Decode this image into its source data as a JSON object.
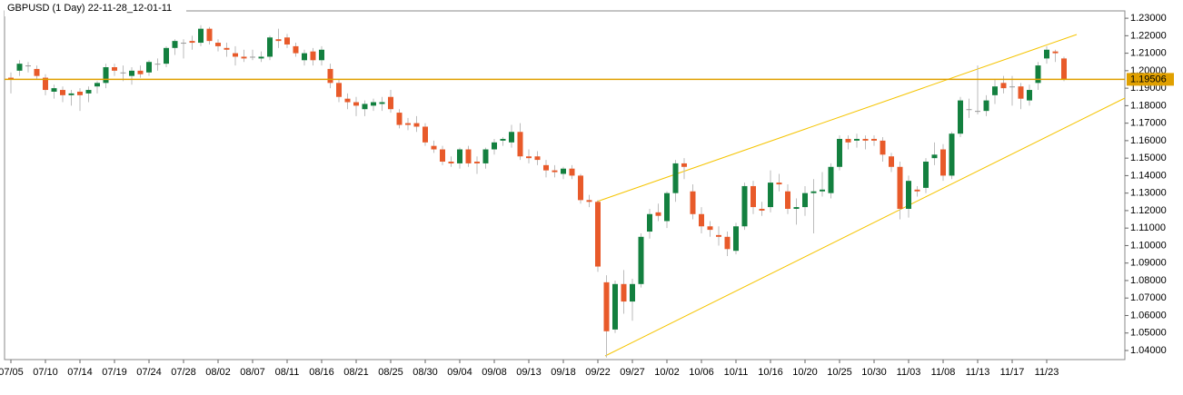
{
  "chart_data": {
    "type": "candlestick",
    "title": "GBPUSD (1 Day) 22-11-28_12-01-11",
    "categories": [
      "07/05",
      null,
      null,
      null,
      "07/10",
      null,
      null,
      null,
      "07/14",
      null,
      null,
      null,
      "07/19",
      null,
      null,
      null,
      "07/24",
      null,
      null,
      null,
      "07/28",
      null,
      null,
      null,
      "08/02",
      null,
      null,
      null,
      "08/07",
      null,
      null,
      null,
      "08/11",
      null,
      null,
      null,
      "08/16",
      null,
      null,
      null,
      "08/21",
      null,
      null,
      null,
      "08/25",
      null,
      null,
      null,
      "08/30",
      null,
      null,
      null,
      "09/04",
      null,
      null,
      null,
      "09/08",
      null,
      null,
      null,
      "09/13",
      null,
      null,
      null,
      "09/18",
      null,
      null,
      null,
      "09/22",
      null,
      null,
      null,
      "09/27",
      null,
      null,
      null,
      "10/02",
      null,
      null,
      null,
      "10/06",
      null,
      null,
      null,
      "10/11",
      null,
      null,
      null,
      "10/16",
      null,
      null,
      null,
      "10/20",
      null,
      null,
      null,
      "10/25",
      null,
      null,
      null,
      "10/30",
      null,
      null,
      null,
      "11/03",
      null,
      null,
      null,
      "11/08",
      null,
      null,
      null,
      "11/13",
      null,
      null,
      null,
      "11/17",
      null,
      null,
      null,
      "11/23",
      null,
      null
    ],
    "candles": [
      [
        1.196,
        1.199,
        1.187,
        1.195
      ],
      [
        1.2,
        1.206,
        1.197,
        1.204
      ],
      [
        1.203,
        1.205,
        1.199,
        1.203
      ],
      [
        1.201,
        1.203,
        1.195,
        1.197
      ],
      [
        1.196,
        1.198,
        1.186,
        1.189
      ],
      [
        1.188,
        1.192,
        1.184,
        1.19
      ],
      [
        1.189,
        1.191,
        1.182,
        1.186
      ],
      [
        1.186,
        1.189,
        1.18,
        1.187
      ],
      [
        1.188,
        1.19,
        1.177,
        1.186
      ],
      [
        1.187,
        1.191,
        1.182,
        1.189
      ],
      [
        1.191,
        1.194,
        1.187,
        1.193
      ],
      [
        1.193,
        1.204,
        1.19,
        1.202
      ],
      [
        1.202,
        1.204,
        1.197,
        1.2
      ],
      [
        1.199,
        1.203,
        1.194,
        1.199
      ],
      [
        1.197,
        1.202,
        1.192,
        1.2
      ],
      [
        1.2,
        1.203,
        1.196,
        1.198
      ],
      [
        1.199,
        1.206,
        1.197,
        1.205
      ],
      [
        1.204,
        1.207,
        1.2,
        1.204
      ],
      [
        1.204,
        1.214,
        1.202,
        1.213
      ],
      [
        1.213,
        1.218,
        1.209,
        1.217
      ],
      [
        1.216,
        1.218,
        1.207,
        1.216
      ],
      [
        1.217,
        1.22,
        1.212,
        1.216
      ],
      [
        1.216,
        1.226,
        1.214,
        1.224
      ],
      [
        1.224,
        1.225,
        1.215,
        1.217
      ],
      [
        1.216,
        1.218,
        1.211,
        1.214
      ],
      [
        1.213,
        1.216,
        1.208,
        1.212
      ],
      [
        1.21,
        1.214,
        1.203,
        1.208
      ],
      [
        1.208,
        1.212,
        1.205,
        1.207
      ],
      [
        1.208,
        1.212,
        1.206,
        1.208
      ],
      [
        1.207,
        1.211,
        1.205,
        1.208
      ],
      [
        1.208,
        1.22,
        1.206,
        1.219
      ],
      [
        1.218,
        1.224,
        1.213,
        1.217
      ],
      [
        1.219,
        1.221,
        1.213,
        1.215
      ],
      [
        1.214,
        1.216,
        1.208,
        1.21
      ],
      [
        1.206,
        1.212,
        1.203,
        1.21
      ],
      [
        1.211,
        1.213,
        1.203,
        1.206
      ],
      [
        1.206,
        1.214,
        1.203,
        1.212
      ],
      [
        1.201,
        1.204,
        1.19,
        1.193
      ],
      [
        1.193,
        1.195,
        1.182,
        1.185
      ],
      [
        1.184,
        1.187,
        1.178,
        1.182
      ],
      [
        1.182,
        1.185,
        1.174,
        1.18
      ],
      [
        1.178,
        1.183,
        1.174,
        1.181
      ],
      [
        1.18,
        1.184,
        1.177,
        1.182
      ],
      [
        1.181,
        1.185,
        1.177,
        1.182
      ],
      [
        1.185,
        1.189,
        1.176,
        1.178
      ],
      [
        1.176,
        1.178,
        1.167,
        1.169
      ],
      [
        1.17,
        1.173,
        1.166,
        1.169
      ],
      [
        1.17,
        1.174,
        1.165,
        1.168
      ],
      [
        1.168,
        1.17,
        1.157,
        1.159
      ],
      [
        1.157,
        1.16,
        1.153,
        1.155
      ],
      [
        1.155,
        1.157,
        1.146,
        1.148
      ],
      [
        1.148,
        1.151,
        1.145,
        1.147
      ],
      [
        1.147,
        1.156,
        1.144,
        1.155
      ],
      [
        1.155,
        1.157,
        1.145,
        1.147
      ],
      [
        1.148,
        1.151,
        1.141,
        1.147
      ],
      [
        1.147,
        1.156,
        1.144,
        1.155
      ],
      [
        1.155,
        1.161,
        1.152,
        1.159
      ],
      [
        1.16,
        1.162,
        1.157,
        1.161
      ],
      [
        1.159,
        1.169,
        1.156,
        1.165
      ],
      [
        1.165,
        1.17,
        1.149,
        1.151
      ],
      [
        1.151,
        1.155,
        1.147,
        1.15
      ],
      [
        1.151,
        1.154,
        1.146,
        1.149
      ],
      [
        1.146,
        1.149,
        1.139,
        1.143
      ],
      [
        1.143,
        1.146,
        1.139,
        1.142
      ],
      [
        1.141,
        1.145,
        1.138,
        1.144
      ],
      [
        1.144,
        1.146,
        1.138,
        1.14
      ],
      [
        1.14,
        1.141,
        1.124,
        1.126
      ],
      [
        1.126,
        1.129,
        1.122,
        1.125
      ],
      [
        1.125,
        1.126,
        1.085,
        1.088
      ],
      [
        1.079,
        1.083,
        1.036,
        1.051
      ],
      [
        1.052,
        1.08,
        1.05,
        1.078
      ],
      [
        1.078,
        1.086,
        1.061,
        1.068
      ],
      [
        1.068,
        1.081,
        1.057,
        1.078
      ],
      [
        1.078,
        1.107,
        1.076,
        1.105
      ],
      [
        1.108,
        1.121,
        1.104,
        1.118
      ],
      [
        1.119,
        1.124,
        1.114,
        1.117
      ],
      [
        1.114,
        1.131,
        1.11,
        1.13
      ],
      [
        1.13,
        1.149,
        1.125,
        1.147
      ],
      [
        1.147,
        1.15,
        1.138,
        1.145
      ],
      [
        1.131,
        1.135,
        1.115,
        1.118
      ],
      [
        1.118,
        1.122,
        1.107,
        1.111
      ],
      [
        1.111,
        1.114,
        1.105,
        1.109
      ],
      [
        1.106,
        1.111,
        1.1,
        1.105
      ],
      [
        1.105,
        1.108,
        1.094,
        1.098
      ],
      [
        1.097,
        1.113,
        1.095,
        1.111
      ],
      [
        1.111,
        1.136,
        1.109,
        1.134
      ],
      [
        1.134,
        1.137,
        1.118,
        1.122
      ],
      [
        1.121,
        1.125,
        1.117,
        1.12
      ],
      [
        1.122,
        1.143,
        1.119,
        1.136
      ],
      [
        1.136,
        1.141,
        1.131,
        1.135
      ],
      [
        1.131,
        1.135,
        1.118,
        1.121
      ],
      [
        1.121,
        1.127,
        1.112,
        1.122
      ],
      [
        1.122,
        1.134,
        1.117,
        1.13
      ],
      [
        1.13,
        1.138,
        1.107,
        1.131
      ],
      [
        1.131,
        1.142,
        1.128,
        1.132
      ],
      [
        1.13,
        1.147,
        1.127,
        1.145
      ],
      [
        1.145,
        1.163,
        1.143,
        1.161
      ],
      [
        1.161,
        1.163,
        1.155,
        1.159
      ],
      [
        1.16,
        1.164,
        1.156,
        1.161
      ],
      [
        1.161,
        1.163,
        1.155,
        1.16
      ],
      [
        1.161,
        1.163,
        1.157,
        1.16
      ],
      [
        1.16,
        1.162,
        1.148,
        1.152
      ],
      [
        1.151,
        1.153,
        1.142,
        1.145
      ],
      [
        1.145,
        1.148,
        1.115,
        1.121
      ],
      [
        1.121,
        1.14,
        1.116,
        1.137
      ],
      [
        1.132,
        1.134,
        1.128,
        1.131
      ],
      [
        1.133,
        1.15,
        1.13,
        1.148
      ],
      [
        1.15,
        1.159,
        1.146,
        1.152
      ],
      [
        1.155,
        1.158,
        1.137,
        1.14
      ],
      [
        1.14,
        1.165,
        1.138,
        1.164
      ],
      [
        1.164,
        1.185,
        1.162,
        1.183
      ],
      [
        1.178,
        1.184,
        1.173,
        1.178
      ],
      [
        1.177,
        1.203,
        1.175,
        1.177
      ],
      [
        1.177,
        1.186,
        1.174,
        1.183
      ],
      [
        1.186,
        1.195,
        1.181,
        1.191
      ],
      [
        1.193,
        1.197,
        1.187,
        1.19
      ],
      [
        1.191,
        1.197,
        1.18,
        1.191
      ],
      [
        1.191,
        1.193,
        1.178,
        1.184
      ],
      [
        1.183,
        1.192,
        1.18,
        1.189
      ],
      [
        1.193,
        1.205,
        1.189,
        1.203
      ],
      [
        1.207,
        1.214,
        1.204,
        1.212
      ],
      [
        1.211,
        1.212,
        1.205,
        1.21
      ],
      [
        1.207,
        1.208,
        1.194,
        1.195
      ]
    ],
    "up_color": "#13803f",
    "down_color": "#e85a2a",
    "ylim": [
      1.0348,
      1.2342
    ],
    "yticks": [
      {
        "value": 1.23,
        "label": "1.23000"
      },
      {
        "value": 1.22,
        "label": "1.22000"
      },
      {
        "value": 1.21,
        "label": "1.21000"
      },
      {
        "value": 1.2,
        "label": "1.20000"
      },
      {
        "value": 1.19,
        "label": "1.19000"
      },
      {
        "value": 1.18,
        "label": "1.18000"
      },
      {
        "value": 1.17,
        "label": "1.17000"
      },
      {
        "value": 1.16,
        "label": "1.16000"
      },
      {
        "value": 1.15,
        "label": "1.15000"
      },
      {
        "value": 1.14,
        "label": "1.14000"
      },
      {
        "value": 1.13,
        "label": "1.13000"
      },
      {
        "value": 1.12,
        "label": "1.12000"
      },
      {
        "value": 1.11,
        "label": "1.11000"
      },
      {
        "value": 1.1,
        "label": "1.10000"
      },
      {
        "value": 1.09,
        "label": "1.09000"
      },
      {
        "value": 1.08,
        "label": "1.08000"
      },
      {
        "value": 1.07,
        "label": "1.07000"
      },
      {
        "value": 1.06,
        "label": "1.06000"
      },
      {
        "value": 1.05,
        "label": "1.05000"
      },
      {
        "value": 1.04,
        "label": "1.04000"
      }
    ],
    "current_price": {
      "value": 1.19506,
      "label": "1.19506"
    },
    "price_line_color": "#e0a000"
  }
}
